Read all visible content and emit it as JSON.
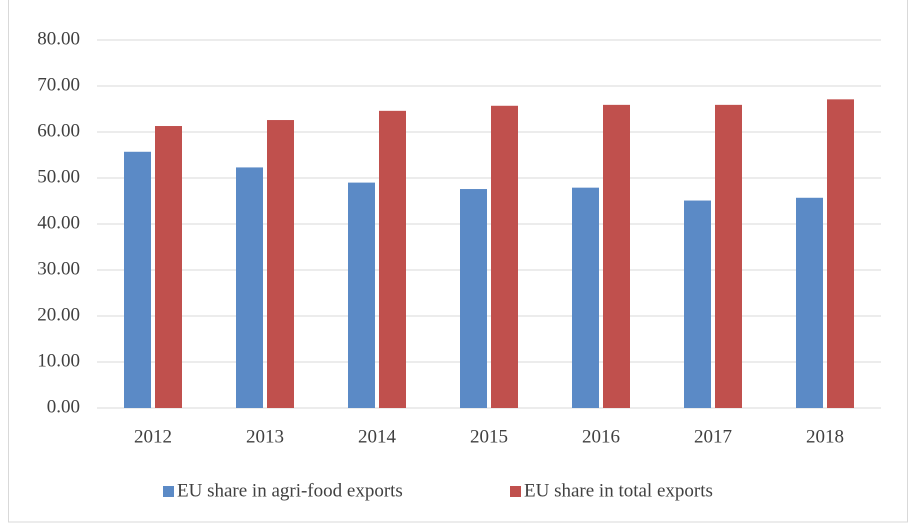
{
  "chart_data": {
    "type": "bar",
    "categories": [
      "2012",
      "2013",
      "2014",
      "2015",
      "2016",
      "2017",
      "2018"
    ],
    "series": [
      {
        "name": "EU share in agri-food exports",
        "color": "#5b8ac6",
        "values": [
          55.7,
          52.3,
          49.0,
          47.6,
          47.9,
          45.1,
          45.7
        ]
      },
      {
        "name": "EU share in total exports",
        "color": "#c0504d",
        "values": [
          61.3,
          62.6,
          64.6,
          65.7,
          65.9,
          65.9,
          67.1
        ]
      }
    ],
    "ylim": [
      0,
      80
    ],
    "yticks": [
      {
        "value": 0,
        "label": "0.00"
      },
      {
        "value": 10,
        "label": "10.00"
      },
      {
        "value": 20,
        "label": "20.00"
      },
      {
        "value": 30,
        "label": "30.00"
      },
      {
        "value": 40,
        "label": "40.00"
      },
      {
        "value": 50,
        "label": "50.00"
      },
      {
        "value": 60,
        "label": "60.00"
      },
      {
        "value": 70,
        "label": "70.00"
      },
      {
        "value": 80,
        "label": "80.00"
      }
    ],
    "grid": true,
    "legend": "bottom"
  }
}
